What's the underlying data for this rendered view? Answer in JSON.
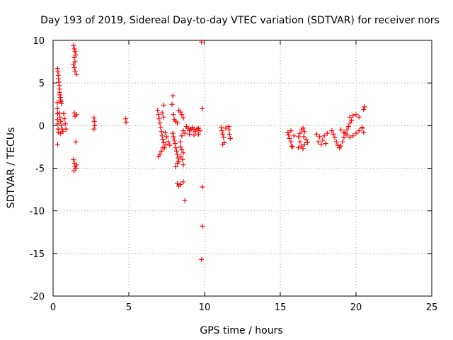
{
  "chart_data": {
    "type": "scatter",
    "title": "Day 193 of 2019, Sidereal Day-to-day VTEC variation (SDTVAR) for receiver nors",
    "xlabel": "GPS time / hours",
    "ylabel": "SDTVAR / TECUs",
    "xlim": [
      0,
      25
    ],
    "ylim": [
      -20,
      10
    ],
    "xticks": [
      "0",
      "5",
      "10",
      "15",
      "20",
      "25"
    ],
    "yticks": [
      "-20",
      "-15",
      "-10",
      "-5",
      "0",
      "5",
      "10"
    ],
    "grid": true,
    "marker": "+",
    "color": "#ff0000",
    "series": [
      {
        "name": "SDTVAR",
        "points": [
          [
            0.3,
            6.7
          ],
          [
            0.32,
            6.3
          ],
          [
            0.34,
            5.9
          ],
          [
            0.36,
            5.5
          ],
          [
            0.38,
            5.1
          ],
          [
            0.4,
            4.7
          ],
          [
            0.42,
            4.3
          ],
          [
            0.44,
            3.9
          ],
          [
            0.46,
            3.6
          ],
          [
            0.48,
            3.3
          ],
          [
            0.5,
            3.0
          ],
          [
            0.52,
            2.8
          ],
          [
            0.55,
            2.6
          ],
          [
            0.28,
            2.7
          ],
          [
            0.28,
            2.0
          ],
          [
            0.3,
            1.4
          ],
          [
            0.3,
            0.7
          ],
          [
            0.32,
            0.2
          ],
          [
            0.33,
            -0.4
          ],
          [
            0.35,
            -0.8
          ],
          [
            0.3,
            -2.2
          ],
          [
            0.4,
            1.5
          ],
          [
            0.45,
            1.0
          ],
          [
            0.5,
            0.5
          ],
          [
            0.55,
            0.0
          ],
          [
            0.6,
            -0.4
          ],
          [
            0.65,
            -0.7
          ],
          [
            0.7,
            1.4
          ],
          [
            0.75,
            0.8
          ],
          [
            0.8,
            0.2
          ],
          [
            0.85,
            -0.4
          ],
          [
            0.5,
            -0.9
          ],
          [
            1.35,
            9.4
          ],
          [
            1.4,
            9.0
          ],
          [
            1.45,
            8.7
          ],
          [
            1.5,
            8.3
          ],
          [
            1.4,
            8.0
          ],
          [
            1.45,
            7.5
          ],
          [
            1.35,
            7.2
          ],
          [
            1.4,
            6.8
          ],
          [
            1.45,
            6.4
          ],
          [
            1.55,
            6.0
          ],
          [
            1.4,
            1.5
          ],
          [
            1.45,
            1.1
          ],
          [
            1.55,
            1.3
          ],
          [
            1.5,
            -1.9
          ],
          [
            1.35,
            -4.0
          ],
          [
            1.4,
            -4.4
          ],
          [
            1.45,
            -4.8
          ],
          [
            1.5,
            -5.0
          ],
          [
            1.38,
            -5.3
          ],
          [
            1.55,
            -4.6
          ],
          [
            2.7,
            0.9
          ],
          [
            2.72,
            0.5
          ],
          [
            2.75,
            0.0
          ],
          [
            2.7,
            -0.4
          ],
          [
            4.8,
            0.8
          ],
          [
            4.82,
            0.4
          ],
          [
            6.9,
            1.8
          ],
          [
            6.95,
            1.3
          ],
          [
            7.0,
            0.8
          ],
          [
            7.05,
            0.3
          ],
          [
            7.1,
            -0.2
          ],
          [
            7.15,
            -0.7
          ],
          [
            7.2,
            -1.2
          ],
          [
            7.25,
            -1.6
          ],
          [
            7.3,
            -2.0
          ],
          [
            7.25,
            -2.6
          ],
          [
            7.15,
            -3.0
          ],
          [
            7.05,
            -3.4
          ],
          [
            6.95,
            -3.6
          ],
          [
            7.2,
            1.5
          ],
          [
            7.3,
            1.0
          ],
          [
            7.4,
            -0.8
          ],
          [
            7.5,
            -1.3
          ],
          [
            7.6,
            -1.9
          ],
          [
            7.7,
            -2.3
          ],
          [
            7.35,
            -2.6
          ],
          [
            7.45,
            -2.2
          ],
          [
            7.3,
            2.4
          ],
          [
            7.9,
            3.5
          ],
          [
            7.85,
            2.5
          ],
          [
            7.95,
            1.3
          ],
          [
            8.0,
            0.7
          ],
          [
            8.1,
            0.5
          ],
          [
            8.2,
            0.3
          ],
          [
            7.9,
            -0.9
          ],
          [
            7.95,
            -1.3
          ],
          [
            8.0,
            -1.7
          ],
          [
            8.05,
            -2.1
          ],
          [
            8.1,
            -2.6
          ],
          [
            8.15,
            -3.0
          ],
          [
            8.2,
            -3.4
          ],
          [
            8.25,
            -3.8
          ],
          [
            8.3,
            -4.2
          ],
          [
            8.1,
            -4.8
          ],
          [
            8.2,
            -4.4
          ],
          [
            8.4,
            -2.5
          ],
          [
            8.5,
            -2.8
          ],
          [
            8.6,
            -3.2
          ],
          [
            8.45,
            -3.6
          ],
          [
            8.55,
            -4.0
          ],
          [
            8.6,
            -4.6
          ],
          [
            8.4,
            -1.9
          ],
          [
            8.5,
            -1.2
          ],
          [
            8.6,
            -0.6
          ],
          [
            8.7,
            -0.9
          ],
          [
            8.3,
            1.8
          ],
          [
            8.4,
            1.6
          ],
          [
            8.5,
            1.3
          ],
          [
            8.6,
            0.9
          ],
          [
            8.2,
            -6.8
          ],
          [
            8.3,
            -7.1
          ],
          [
            8.4,
            -6.9
          ],
          [
            8.6,
            -6.6
          ],
          [
            8.7,
            -8.8
          ],
          [
            8.8,
            -0.1
          ],
          [
            8.9,
            -0.3
          ],
          [
            9.0,
            -0.6
          ],
          [
            9.1,
            -0.4
          ],
          [
            9.2,
            -0.2
          ],
          [
            9.3,
            -0.5
          ],
          [
            9.4,
            -0.7
          ],
          [
            9.5,
            -0.4
          ],
          [
            9.6,
            -0.3
          ],
          [
            9.7,
            -0.6
          ],
          [
            9.0,
            -1.0
          ],
          [
            9.3,
            -1.1
          ],
          [
            9.6,
            -1.0
          ],
          [
            9.8,
            9.8
          ],
          [
            9.85,
            2.0
          ],
          [
            9.85,
            -7.2
          ],
          [
            9.85,
            -11.8
          ],
          [
            9.8,
            -15.7
          ],
          [
            11.1,
            -0.2
          ],
          [
            11.15,
            -0.6
          ],
          [
            11.2,
            -1.0
          ],
          [
            11.25,
            -1.4
          ],
          [
            11.3,
            -2.0
          ],
          [
            11.2,
            -2.2
          ],
          [
            11.4,
            -0.3
          ],
          [
            11.6,
            -0.1
          ],
          [
            11.62,
            -0.5
          ],
          [
            11.65,
            -1.0
          ],
          [
            11.7,
            -1.5
          ],
          [
            15.5,
            -0.8
          ],
          [
            15.55,
            -1.1
          ],
          [
            15.6,
            -1.5
          ],
          [
            15.7,
            -1.9
          ],
          [
            15.75,
            -2.4
          ],
          [
            15.8,
            -2.5
          ],
          [
            15.7,
            -0.6
          ],
          [
            15.9,
            -1.2
          ],
          [
            16.2,
            -1.3
          ],
          [
            16.3,
            -0.9
          ],
          [
            16.4,
            -0.5
          ],
          [
            16.5,
            -0.3
          ],
          [
            16.6,
            -0.7
          ],
          [
            16.3,
            -1.9
          ],
          [
            16.4,
            -2.4
          ],
          [
            16.5,
            -2.7
          ],
          [
            16.6,
            -2.2
          ],
          [
            16.7,
            -1.6
          ],
          [
            16.8,
            -2.0
          ],
          [
            16.2,
            -2.6
          ],
          [
            16.55,
            -1.3
          ],
          [
            17.4,
            -1.0
          ],
          [
            17.6,
            -1.3
          ],
          [
            17.8,
            -1.7
          ],
          [
            18.0,
            -2.1
          ],
          [
            17.5,
            -1.9
          ],
          [
            17.7,
            -2.2
          ],
          [
            17.9,
            -1.2
          ],
          [
            18.1,
            -0.9
          ],
          [
            18.4,
            -0.6
          ],
          [
            18.5,
            -1.0
          ],
          [
            18.6,
            -1.4
          ],
          [
            18.7,
            -1.9
          ],
          [
            18.8,
            -2.3
          ],
          [
            18.9,
            -2.6
          ],
          [
            19.0,
            -2.4
          ],
          [
            19.1,
            -1.9
          ],
          [
            19.2,
            -1.4
          ],
          [
            19.3,
            -0.9
          ],
          [
            19.4,
            -0.5
          ],
          [
            19.5,
            -0.1
          ],
          [
            19.6,
            0.3
          ],
          [
            19.7,
            0.6
          ],
          [
            19.0,
            -0.5
          ],
          [
            19.2,
            -0.8
          ],
          [
            19.4,
            -1.1
          ],
          [
            19.6,
            -1.4
          ],
          [
            19.8,
            -1.2
          ],
          [
            20.0,
            -0.9
          ],
          [
            20.2,
            -0.6
          ],
          [
            20.4,
            -0.3
          ],
          [
            19.6,
            1.0
          ],
          [
            19.8,
            1.2
          ],
          [
            20.0,
            1.3
          ],
          [
            20.2,
            1.0
          ],
          [
            20.4,
            -0.2
          ],
          [
            20.5,
            -0.8
          ],
          [
            20.5,
            1.9
          ],
          [
            20.55,
            2.2
          ]
        ]
      }
    ]
  }
}
